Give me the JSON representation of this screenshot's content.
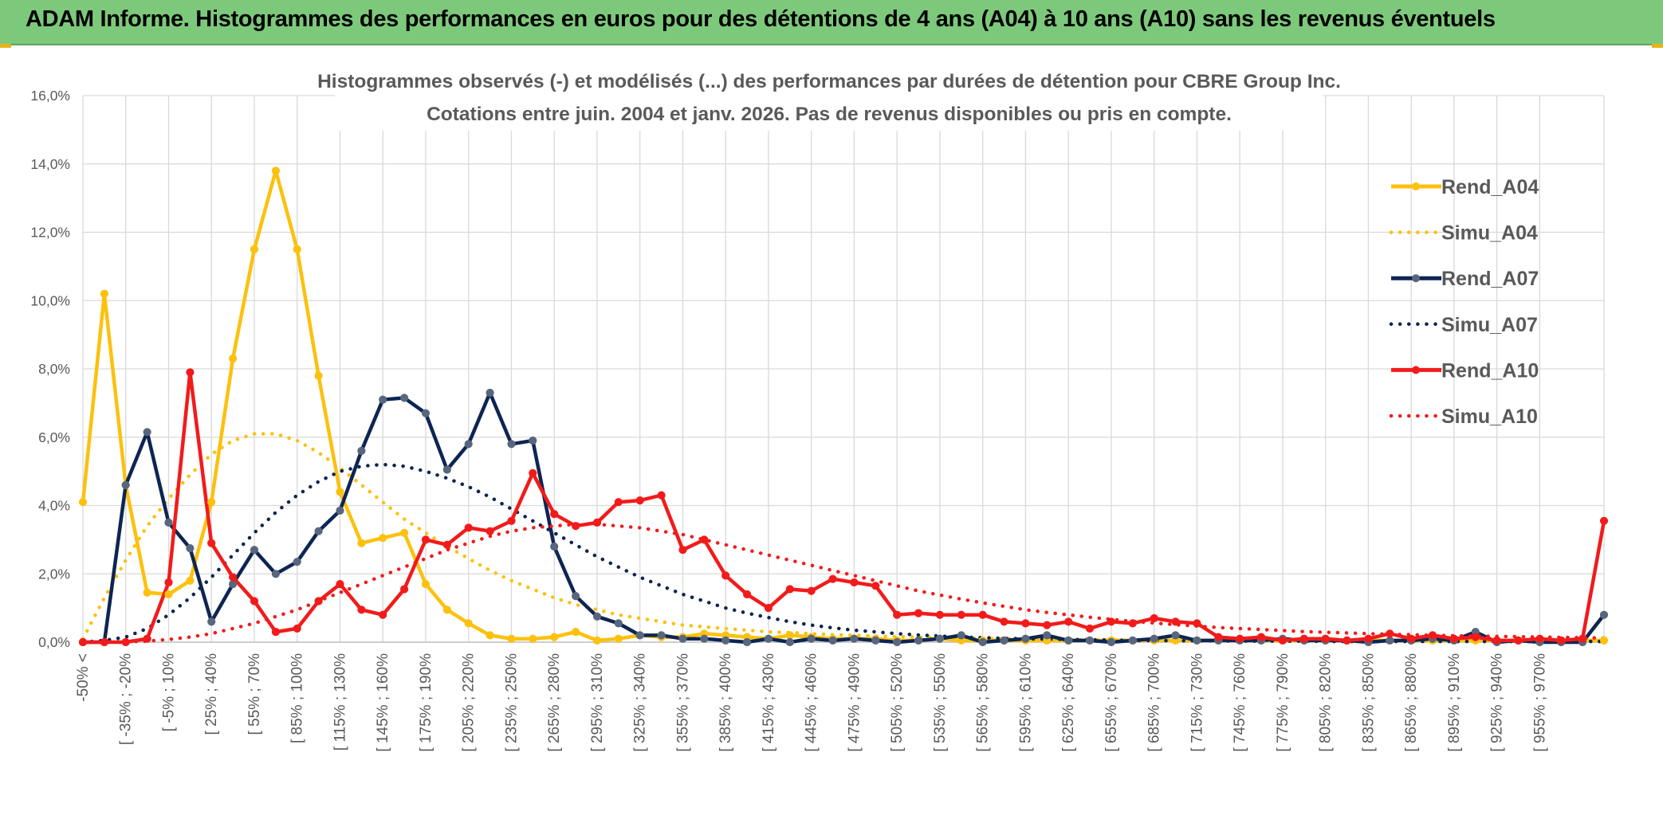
{
  "header": {
    "title": "ADAM Informe. Histogrammes des performances en euros pour des détentions de 4 ans (A04) à 10 ans (A10) sans les revenus éventuels"
  },
  "colors": {
    "header_bg": "#7dc97b",
    "a04": "#fcc10e",
    "a07": "#0d2552",
    "a07_marker": "#58677e",
    "a10": "#f21b1b",
    "grid": "#d9d9d9"
  },
  "chart_data": {
    "type": "line",
    "title": "Histogrammes observés (-) et modélisés (...) des performances par durées de détention pour CBRE Group Inc.",
    "subtitle": "Cotations entre juin. 2004 et janv. 2026. Pas de revenus disponibles ou pris en compte.",
    "ylim": [
      0,
      16
    ],
    "yticks": [
      0,
      2,
      4,
      6,
      8,
      10,
      12,
      14,
      16
    ],
    "ytick_labels": [
      "0,0%",
      "2,0%",
      "4,0%",
      "6,0%",
      "8,0%",
      "10,0%",
      "12,0%",
      "14,0%",
      "16,0%"
    ],
    "num_bins": 72,
    "tick_labels": [
      "-50% <",
      "[ -35% ; -20%",
      "[ -5% ; 10%",
      "[ 25% ; 40%",
      "[ 55% ; 70%",
      "[ 85% ; 100%",
      "[ 115% ; 130%",
      "[ 145% ; 160%",
      "[ 175% ; 190%",
      "[ 205% ; 220%",
      "[ 235% ; 250%",
      "[ 265% ; 280%",
      "[ 295% ; 310%",
      "[ 325% ; 340%",
      "[ 355% ; 370%",
      "[ 385% ; 400%",
      "[ 415% ; 430%",
      "[ 445% ; 460%",
      "[ 475% ; 490%",
      "[ 505% ; 520%",
      "[ 535% ; 550%",
      "[ 565% ; 580%",
      "[ 595% ; 610%",
      "[ 625% ; 640%",
      "[ 655% ; 670%",
      "[ 685% ; 700%",
      "[ 715% ; 730%",
      "[ 745% ; 760%",
      "[ 775% ; 790%",
      "[ 805% ; 820%",
      "[ 835% ; 850%",
      "[ 865% ; 880%",
      "[ 895% ; 910%",
      "[ 925% ; 940%",
      "[ 955% ; 970%"
    ],
    "tick_label_bins": [
      0,
      2,
      4,
      6,
      8,
      10,
      12,
      14,
      16,
      18,
      20,
      22,
      24,
      26,
      28,
      30,
      32,
      34,
      36,
      38,
      40,
      42,
      44,
      46,
      48,
      50,
      52,
      54,
      56,
      58,
      60,
      62,
      64,
      66,
      68
    ],
    "legend_position": "right",
    "series": [
      {
        "name": "Rend_A04",
        "style": "solid",
        "color": "#fcc10e",
        "values": [
          4.1,
          10.2,
          4.6,
          1.45,
          1.4,
          1.8,
          4.1,
          8.3,
          11.5,
          13.8,
          11.5,
          7.8,
          4.4,
          2.9,
          3.05,
          3.2,
          1.7,
          0.95,
          0.55,
          0.2,
          0.1,
          0.1,
          0.15,
          0.3,
          0.05,
          0.1,
          0.2,
          0.15,
          0.15,
          0.25,
          0.2,
          0.15,
          0.1,
          0.2,
          0.15,
          0.1,
          0.1,
          0.1,
          0.05,
          0.05,
          0.1,
          0.05,
          0.05,
          0.05,
          0.05,
          0.05,
          0.05,
          0.05,
          0.05,
          0.05,
          0.05,
          0.05,
          0.05,
          0.05,
          0.05,
          0.05,
          0.05,
          0.05,
          0.05,
          0.05,
          0.05,
          0.05,
          0.05,
          0.05,
          0.05,
          0.05,
          0.05,
          0.05,
          0.05,
          0.05,
          0.05,
          0.05
        ]
      },
      {
        "name": "Simu_A04",
        "style": "dotted",
        "color": "#fcc10e",
        "values": [
          0.1,
          1.3,
          2.4,
          3.4,
          4.2,
          4.9,
          5.5,
          5.9,
          6.1,
          6.1,
          5.9,
          5.55,
          5.1,
          4.6,
          4.1,
          3.6,
          3.2,
          2.8,
          2.45,
          2.1,
          1.8,
          1.55,
          1.3,
          1.1,
          0.95,
          0.8,
          0.7,
          0.6,
          0.5,
          0.45,
          0.4,
          0.35,
          0.3,
          0.28,
          0.25,
          0.22,
          0.2,
          0.18,
          0.16,
          0.15,
          0.13,
          0.12,
          0.11,
          0.1,
          0.09,
          0.08,
          0.08,
          0.07,
          0.07,
          0.06,
          0.06,
          0.05,
          0.05,
          0.05,
          0.05,
          0.04,
          0.04,
          0.04,
          0.04,
          0.04,
          0.03,
          0.03,
          0.03,
          0.03,
          0.03,
          0.03,
          0.03,
          0.03,
          0.03,
          0.03,
          0.03,
          0.03
        ]
      },
      {
        "name": "Rend_A07",
        "style": "solid",
        "color": "#0d2552",
        "values": [
          0.0,
          0.0,
          4.6,
          6.15,
          3.5,
          2.75,
          0.6,
          1.7,
          2.7,
          2.0,
          2.35,
          3.25,
          3.85,
          5.6,
          7.1,
          7.15,
          6.7,
          5.05,
          5.8,
          7.3,
          5.8,
          5.9,
          2.8,
          1.35,
          0.75,
          0.55,
          0.2,
          0.2,
          0.1,
          0.1,
          0.05,
          0.0,
          0.1,
          0.0,
          0.1,
          0.05,
          0.1,
          0.05,
          0.0,
          0.05,
          0.1,
          0.2,
          0.0,
          0.05,
          0.1,
          0.2,
          0.05,
          0.05,
          0.0,
          0.05,
          0.1,
          0.2,
          0.05,
          0.05,
          0.05,
          0.05,
          0.1,
          0.05,
          0.05,
          0.05,
          0.0,
          0.05,
          0.05,
          0.1,
          0.05,
          0.3,
          0.0,
          0.05,
          0.0,
          0.0,
          0.0,
          0.8
        ]
      },
      {
        "name": "Simu_A07",
        "style": "dotted",
        "color": "#0d2552",
        "values": [
          0.0,
          0.05,
          0.15,
          0.4,
          0.8,
          1.3,
          1.9,
          2.55,
          3.2,
          3.8,
          4.3,
          4.7,
          5.0,
          5.15,
          5.2,
          5.15,
          5.0,
          4.8,
          4.55,
          4.25,
          3.9,
          3.55,
          3.2,
          2.85,
          2.5,
          2.2,
          1.9,
          1.65,
          1.4,
          1.2,
          1.0,
          0.85,
          0.72,
          0.6,
          0.5,
          0.42,
          0.35,
          0.3,
          0.25,
          0.21,
          0.18,
          0.15,
          0.13,
          0.11,
          0.1,
          0.09,
          0.08,
          0.07,
          0.06,
          0.05,
          0.05,
          0.04,
          0.04,
          0.04,
          0.03,
          0.03,
          0.03,
          0.03,
          0.02,
          0.02,
          0.02,
          0.02,
          0.02,
          0.02,
          0.02,
          0.02,
          0.02,
          0.02,
          0.02,
          0.02,
          0.02,
          0.02
        ]
      },
      {
        "name": "Rend_A10",
        "style": "solid",
        "color": "#f21b1b",
        "values": [
          0.0,
          0.0,
          0.0,
          0.1,
          1.75,
          7.9,
          2.9,
          1.9,
          1.2,
          0.3,
          0.4,
          1.2,
          1.7,
          0.95,
          0.8,
          1.55,
          3.0,
          2.85,
          3.35,
          3.25,
          3.55,
          4.95,
          3.75,
          3.4,
          3.5,
          4.1,
          4.15,
          4.3,
          2.7,
          3.0,
          1.95,
          1.4,
          1.0,
          1.55,
          1.5,
          1.85,
          1.75,
          1.65,
          0.8,
          0.85,
          0.8,
          0.8,
          0.8,
          0.6,
          0.55,
          0.5,
          0.6,
          0.4,
          0.6,
          0.55,
          0.7,
          0.6,
          0.55,
          0.15,
          0.1,
          0.15,
          0.05,
          0.1,
          0.1,
          0.05,
          0.1,
          0.25,
          0.1,
          0.2,
          0.1,
          0.15,
          0.05,
          0.05,
          0.1,
          0.05,
          0.1,
          3.55
        ]
      },
      {
        "name": "Simu_A10",
        "style": "dotted",
        "color": "#f21b1b",
        "values": [
          0.0,
          0.0,
          0.01,
          0.03,
          0.08,
          0.15,
          0.25,
          0.4,
          0.55,
          0.75,
          0.95,
          1.2,
          1.45,
          1.7,
          1.95,
          2.2,
          2.45,
          2.7,
          2.9,
          3.1,
          3.25,
          3.35,
          3.4,
          3.45,
          3.45,
          3.4,
          3.35,
          3.25,
          3.15,
          3.0,
          2.85,
          2.7,
          2.55,
          2.4,
          2.25,
          2.1,
          1.95,
          1.8,
          1.65,
          1.5,
          1.38,
          1.26,
          1.15,
          1.05,
          0.95,
          0.87,
          0.8,
          0.73,
          0.67,
          0.61,
          0.56,
          0.51,
          0.47,
          0.43,
          0.4,
          0.37,
          0.34,
          0.31,
          0.29,
          0.27,
          0.25,
          0.23,
          0.22,
          0.2,
          0.19,
          0.18,
          0.17,
          0.16,
          0.15,
          0.14,
          0.13,
          0.12
        ]
      }
    ]
  }
}
